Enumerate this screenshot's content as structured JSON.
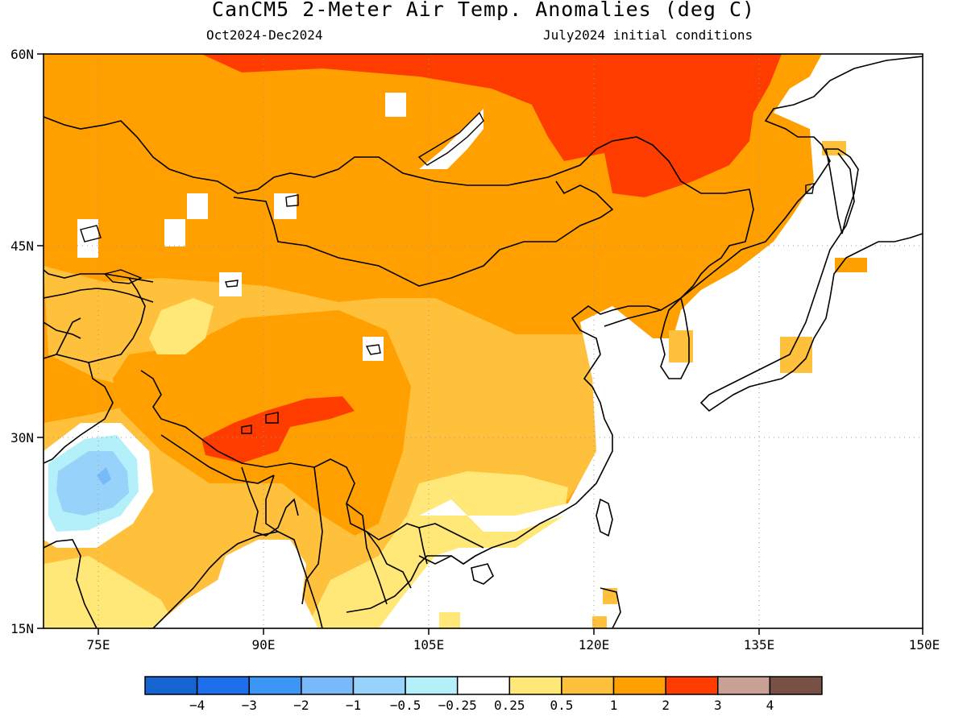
{
  "header": {
    "title": "CanCM5 2-Meter Air Temp. Anomalies (deg C)",
    "period": "Oct2024-Dec2024",
    "initial_conditions": "July2024 initial conditions"
  },
  "map": {
    "projection": "lat-lon",
    "lon_range": [
      70,
      150
    ],
    "lat_range": [
      15,
      60
    ],
    "lat_ticks": [
      {
        "label": "60N",
        "value": 60
      },
      {
        "label": "45N",
        "value": 45
      },
      {
        "label": "30N",
        "value": 30
      },
      {
        "label": "15N",
        "value": 15
      }
    ],
    "lon_ticks": [
      {
        "label": "75E",
        "value": 75
      },
      {
        "label": "90E",
        "value": 90
      },
      {
        "label": "105E",
        "value": 105
      },
      {
        "label": "120E",
        "value": 120
      },
      {
        "label": "135E",
        "value": 135
      },
      {
        "label": "150E",
        "value": 150
      }
    ],
    "grid": "dotted"
  },
  "colorbar": {
    "bins": [
      {
        "color": "#1464d2"
      },
      {
        "color": "#1e6eeb"
      },
      {
        "color": "#3c96f5"
      },
      {
        "color": "#78b9fa"
      },
      {
        "color": "#96d2fa"
      },
      {
        "color": "#b4f0fa"
      },
      {
        "color": "#ffffff"
      },
      {
        "color": "#ffe878"
      },
      {
        "color": "#ffc03c"
      },
      {
        "color": "#ffa000"
      },
      {
        "color": "#ff3c00"
      },
      {
        "color": "#c8a096"
      },
      {
        "color": "#785046"
      }
    ],
    "labels": [
      "−4",
      "−3",
      "−2",
      "−1",
      "−0.5",
      "−0.25",
      "0.25",
      "0.5",
      "1",
      "2",
      "3",
      "4"
    ]
  },
  "chart_data": {
    "type": "heatmap",
    "title": "CanCM5 2-Meter Air Temp. Anomalies (deg C)",
    "variable": "2-meter air temperature anomaly",
    "units": "deg C",
    "contour_levels": [
      -4,
      -3,
      -2,
      -1,
      -0.5,
      -0.25,
      0.25,
      0.5,
      1,
      2,
      3,
      4
    ],
    "regions": [
      {
        "region": "Siberia / Mongolia / northern Kazakhstan",
        "anomaly_range": [
          1,
          2
        ]
      },
      {
        "region": "Northeast China / Russian Far East around 50-60N, 120-135E",
        "anomaly_range": [
          2,
          3
        ]
      },
      {
        "region": "Southern Tibetan Plateau near 30-33N, 85-98E",
        "anomaly_range": [
          2,
          3
        ]
      },
      {
        "region": "Central and southern China",
        "anomaly_range": [
          0.5,
          1
        ]
      },
      {
        "region": "Tarim Basin near 40N, 82E",
        "anomaly_range": [
          0.25,
          0.5
        ]
      },
      {
        "region": "Northwest India / Pakistan near 27N, 75E",
        "anomaly_range": [
          -1,
          -0.5
        ]
      },
      {
        "region": "Southeast China coast and oceans",
        "anomaly_range": [
          -0.25,
          0.25
        ]
      }
    ]
  }
}
